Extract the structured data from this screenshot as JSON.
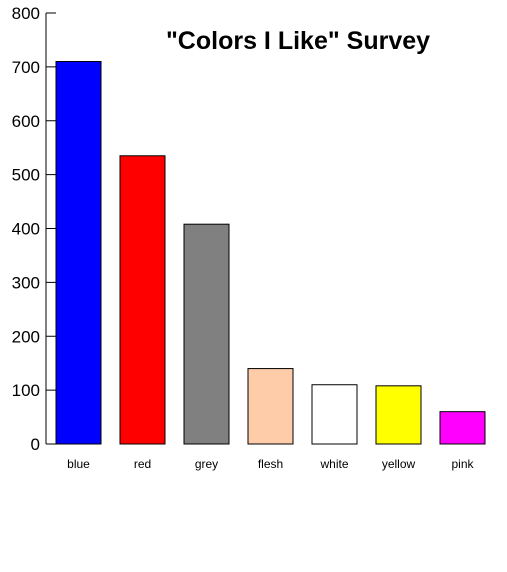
{
  "chart_data": {
    "type": "bar",
    "title": "\"Colors I Like\" Survey",
    "xlabel": "",
    "ylabel": "",
    "categories": [
      "blue",
      "red",
      "grey",
      "flesh",
      "white",
      "yellow",
      "pink"
    ],
    "values": [
      710,
      535,
      408,
      140,
      110,
      108,
      60
    ],
    "colors": [
      "#0000ff",
      "#ff0000",
      "#808080",
      "#ffccaa",
      "#ffffff",
      "#ffff00",
      "#ff00ff"
    ],
    "ylim": [
      0,
      800
    ],
    "yticks": [
      "0",
      "100",
      "200",
      "300",
      "400",
      "500",
      "600",
      "700",
      "800"
    ],
    "grid": false,
    "legend": "none"
  }
}
